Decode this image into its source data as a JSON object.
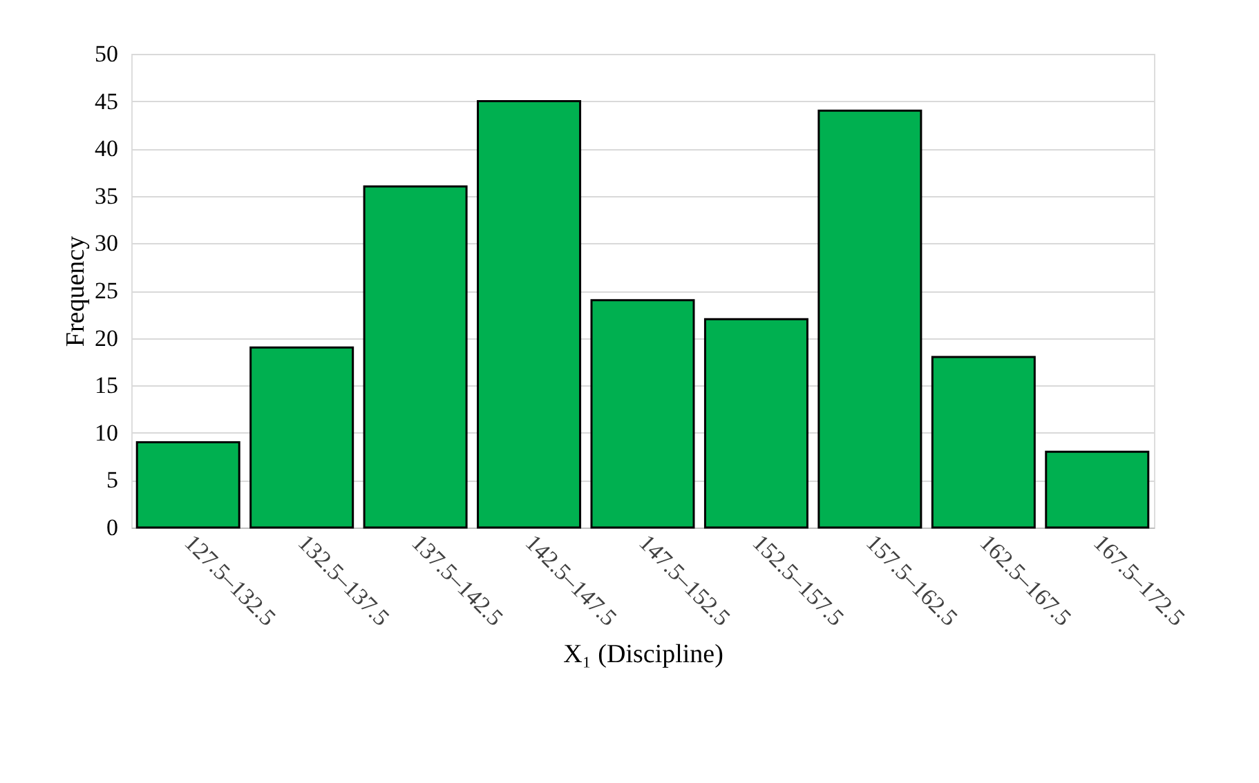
{
  "chart_data": {
    "type": "bar",
    "categories": [
      "127.5–132.5",
      "132.5–137.5",
      "137.5–142.5",
      "142.5–147.5",
      "147.5–152.5",
      "152.5–157.5",
      "157.5–162.5",
      "162.5–167.5",
      "167.5–172.5"
    ],
    "values": [
      9,
      19,
      36,
      45,
      24,
      22,
      44,
      18,
      8
    ],
    "color": "#00b050",
    "xlabel": "X₁ (Discipline)",
    "ylabel": "Frequency",
    "ylim": [
      0,
      50
    ],
    "yticks": [
      0,
      5,
      10,
      15,
      20,
      25,
      30,
      35,
      40,
      45,
      50
    ],
    "grid": "y"
  }
}
